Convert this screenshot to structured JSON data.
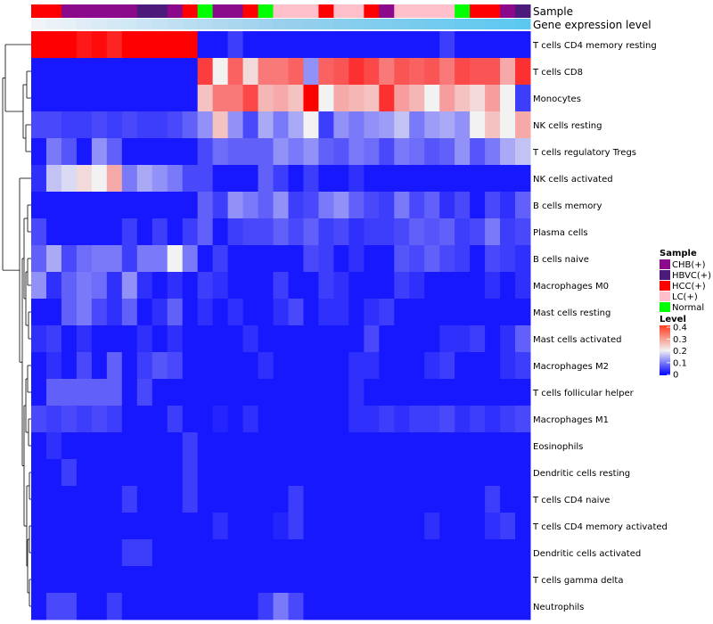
{
  "chart_data": {
    "type": "heatmap",
    "title": "",
    "annotation_labels": [
      "Sample",
      "Gene expression level"
    ],
    "column_count": 33,
    "sample_groups": [
      "HCC(+)",
      "HCC(+)",
      "CHB(+)",
      "CHB(+)",
      "CHB(+)",
      "CHB(+)",
      "CHB(+)",
      "HBVC(+)",
      "HBVC(+)",
      "CHB(+)",
      "HCC(+)",
      "Normal",
      "CHB(+)",
      "CHB(+)",
      "HCC(+)",
      "Normal",
      "LC(+)",
      "LC(+)",
      "LC(+)",
      "HCC(+)",
      "LC(+)",
      "LC(+)",
      "HCC(+)",
      "CHB(+)",
      "LC(+)",
      "LC(+)",
      "LC(+)",
      "LC(+)",
      "Normal",
      "HCC(+)",
      "HCC(+)",
      "CHB(+)",
      "HBVC(+)"
    ],
    "expression_gradient": [
      "#f0f4f8",
      "#9ad0ec",
      "#5bc8f0"
    ],
    "rows": [
      {
        "name": "T cells CD4 memory resting",
        "values": [
          0.43,
          0.42,
          0.41,
          0.38,
          0.39,
          0.37,
          0.41,
          0.42,
          0.43,
          0.42,
          0.41,
          0.02,
          0.02,
          0.05,
          0.02,
          0.02,
          0.02,
          0.02,
          0.02,
          0.02,
          0.02,
          0.02,
          0.02,
          0.02,
          0.02,
          0.02,
          0.02,
          0.05,
          0.02,
          0.02,
          0.02,
          0.02,
          0.02
        ]
      },
      {
        "name": "T cells CD8",
        "values": [
          0.02,
          0.02,
          0.02,
          0.02,
          0.02,
          0.02,
          0.02,
          0.02,
          0.02,
          0.02,
          0.02,
          0.35,
          0.2,
          0.32,
          0.22,
          0.3,
          0.3,
          0.32,
          0.12,
          0.32,
          0.33,
          0.36,
          0.34,
          0.3,
          0.33,
          0.32,
          0.33,
          0.3,
          0.34,
          0.33,
          0.33,
          0.26,
          0.36
        ]
      },
      {
        "name": "Monocytes",
        "values": [
          0.02,
          0.02,
          0.02,
          0.02,
          0.02,
          0.02,
          0.02,
          0.02,
          0.02,
          0.02,
          0.02,
          0.24,
          0.3,
          0.3,
          0.34,
          0.25,
          0.26,
          0.24,
          0.42,
          0.2,
          0.26,
          0.25,
          0.24,
          0.36,
          0.27,
          0.25,
          0.2,
          0.27,
          0.24,
          0.22,
          0.27,
          0.2,
          0.05
        ]
      },
      {
        "name": "NK cells resting",
        "values": [
          0.06,
          0.06,
          0.05,
          0.05,
          0.06,
          0.05,
          0.06,
          0.05,
          0.05,
          0.06,
          0.08,
          0.12,
          0.24,
          0.12,
          0.06,
          0.14,
          0.1,
          0.14,
          0.2,
          0.05,
          0.12,
          0.1,
          0.12,
          0.13,
          0.16,
          0.1,
          0.13,
          0.14,
          0.12,
          0.2,
          0.24,
          0.2,
          0.26
        ]
      },
      {
        "name": "T cells regulatory  Tregs",
        "values": [
          0.02,
          0.1,
          0.07,
          0.02,
          0.12,
          0.08,
          0.02,
          0.02,
          0.02,
          0.02,
          0.02,
          0.06,
          0.09,
          0.08,
          0.08,
          0.08,
          0.12,
          0.1,
          0.12,
          0.08,
          0.07,
          0.1,
          0.09,
          0.06,
          0.1,
          0.09,
          0.07,
          0.08,
          0.12,
          0.07,
          0.1,
          0.14,
          0.16
        ]
      },
      {
        "name": "NK cells activated",
        "values": [
          0.04,
          0.16,
          0.18,
          0.22,
          0.2,
          0.26,
          0.1,
          0.14,
          0.12,
          0.1,
          0.06,
          0.06,
          0.02,
          0.02,
          0.02,
          0.08,
          0.05,
          0.02,
          0.05,
          0.02,
          0.02,
          0.04,
          0.02,
          0.02,
          0.02,
          0.02,
          0.02,
          0.02,
          0.02,
          0.02,
          0.02,
          0.02,
          0.02
        ]
      },
      {
        "name": "B cells memory",
        "values": [
          0.02,
          0.02,
          0.02,
          0.02,
          0.02,
          0.02,
          0.02,
          0.02,
          0.02,
          0.02,
          0.02,
          0.08,
          0.05,
          0.12,
          0.1,
          0.08,
          0.12,
          0.05,
          0.06,
          0.1,
          0.12,
          0.08,
          0.06,
          0.05,
          0.1,
          0.06,
          0.08,
          0.04,
          0.06,
          0.02,
          0.06,
          0.04,
          0.08
        ]
      },
      {
        "name": "Plasma cells",
        "values": [
          0.06,
          0.02,
          0.02,
          0.02,
          0.02,
          0.02,
          0.05,
          0.02,
          0.05,
          0.02,
          0.05,
          0.08,
          0.02,
          0.05,
          0.06,
          0.06,
          0.08,
          0.06,
          0.08,
          0.05,
          0.06,
          0.04,
          0.05,
          0.05,
          0.06,
          0.08,
          0.07,
          0.08,
          0.05,
          0.06,
          0.1,
          0.05,
          0.06
        ]
      },
      {
        "name": "B cells naive",
        "values": [
          0.08,
          0.14,
          0.06,
          0.09,
          0.1,
          0.1,
          0.05,
          0.1,
          0.1,
          0.2,
          0.1,
          0.02,
          0.05,
          0.02,
          0.02,
          0.02,
          0.02,
          0.02,
          0.06,
          0.05,
          0.02,
          0.04,
          0.02,
          0.02,
          0.07,
          0.06,
          0.08,
          0.06,
          0.05,
          0.02,
          0.06,
          0.05,
          0.04
        ]
      },
      {
        "name": "Macrophages M0",
        "values": [
          0.12,
          0.04,
          0.08,
          0.1,
          0.09,
          0.04,
          0.12,
          0.04,
          0.02,
          0.04,
          0.02,
          0.05,
          0.04,
          0.02,
          0.02,
          0.02,
          0.05,
          0.02,
          0.02,
          0.05,
          0.04,
          0.02,
          0.02,
          0.02,
          0.05,
          0.04,
          0.02,
          0.02,
          0.02,
          0.02,
          0.04,
          0.02,
          0.04
        ]
      },
      {
        "name": "Mast cells resting",
        "values": [
          0.02,
          0.02,
          0.08,
          0.1,
          0.06,
          0.04,
          0.08,
          0.02,
          0.04,
          0.08,
          0.02,
          0.04,
          0.02,
          0.04,
          0.02,
          0.02,
          0.04,
          0.06,
          0.02,
          0.04,
          0.04,
          0.02,
          0.04,
          0.05,
          0.02,
          0.02,
          0.02,
          0.02,
          0.02,
          0.02,
          0.02,
          0.02,
          0.02
        ]
      },
      {
        "name": "Mast cells activated",
        "values": [
          0.04,
          0.05,
          0.02,
          0.04,
          0.02,
          0.02,
          0.02,
          0.04,
          0.02,
          0.04,
          0.02,
          0.02,
          0.02,
          0.02,
          0.04,
          0.02,
          0.02,
          0.02,
          0.02,
          0.02,
          0.02,
          0.02,
          0.06,
          0.02,
          0.02,
          0.02,
          0.02,
          0.04,
          0.04,
          0.05,
          0.02,
          0.04,
          0.08
        ]
      },
      {
        "name": "Macrophages M2",
        "values": [
          0.02,
          0.04,
          0.02,
          0.06,
          0.02,
          0.08,
          0.02,
          0.05,
          0.07,
          0.06,
          0.02,
          0.02,
          0.02,
          0.02,
          0.02,
          0.04,
          0.02,
          0.02,
          0.02,
          0.02,
          0.02,
          0.04,
          0.04,
          0.02,
          0.02,
          0.02,
          0.04,
          0.05,
          0.02,
          0.02,
          0.02,
          0.04,
          0.05
        ]
      },
      {
        "name": "T cells follicular helper",
        "values": [
          0.02,
          0.08,
          0.08,
          0.08,
          0.08,
          0.08,
          0.02,
          0.06,
          0.02,
          0.02,
          0.02,
          0.02,
          0.02,
          0.02,
          0.02,
          0.02,
          0.02,
          0.02,
          0.02,
          0.02,
          0.02,
          0.04,
          0.02,
          0.02,
          0.02,
          0.02,
          0.02,
          0.02,
          0.02,
          0.02,
          0.02,
          0.02,
          0.02
        ]
      },
      {
        "name": "Macrophages M1",
        "values": [
          0.06,
          0.05,
          0.06,
          0.05,
          0.06,
          0.05,
          0.02,
          0.02,
          0.02,
          0.05,
          0.02,
          0.02,
          0.03,
          0.02,
          0.04,
          0.02,
          0.02,
          0.02,
          0.02,
          0.02,
          0.02,
          0.04,
          0.04,
          0.05,
          0.04,
          0.05,
          0.05,
          0.06,
          0.04,
          0.05,
          0.04,
          0.05,
          0.06
        ]
      },
      {
        "name": "Eosinophils",
        "values": [
          0.02,
          0.04,
          0.02,
          0.02,
          0.02,
          0.02,
          0.02,
          0.02,
          0.02,
          0.02,
          0.05,
          0.02,
          0.02,
          0.02,
          0.02,
          0.02,
          0.02,
          0.02,
          0.02,
          0.02,
          0.02,
          0.02,
          0.02,
          0.02,
          0.02,
          0.02,
          0.02,
          0.02,
          0.02,
          0.02,
          0.02,
          0.02,
          0.02
        ]
      },
      {
        "name": "Dendritic cells resting",
        "values": [
          0.02,
          0.02,
          0.05,
          0.02,
          0.02,
          0.02,
          0.02,
          0.02,
          0.02,
          0.02,
          0.05,
          0.02,
          0.02,
          0.02,
          0.02,
          0.02,
          0.02,
          0.02,
          0.02,
          0.02,
          0.02,
          0.02,
          0.02,
          0.02,
          0.02,
          0.02,
          0.02,
          0.02,
          0.02,
          0.02,
          0.02,
          0.02,
          0.02
        ]
      },
      {
        "name": "T cells CD4 naive",
        "values": [
          0.02,
          0.02,
          0.02,
          0.02,
          0.02,
          0.02,
          0.05,
          0.02,
          0.02,
          0.02,
          0.05,
          0.02,
          0.02,
          0.02,
          0.02,
          0.02,
          0.02,
          0.05,
          0.02,
          0.02,
          0.02,
          0.02,
          0.02,
          0.02,
          0.02,
          0.02,
          0.02,
          0.02,
          0.02,
          0.02,
          0.05,
          0.02,
          0.02
        ]
      },
      {
        "name": "T cells CD4 memory activated",
        "values": [
          0.02,
          0.02,
          0.02,
          0.02,
          0.02,
          0.02,
          0.02,
          0.02,
          0.02,
          0.02,
          0.02,
          0.02,
          0.04,
          0.02,
          0.02,
          0.02,
          0.03,
          0.05,
          0.02,
          0.02,
          0.02,
          0.02,
          0.02,
          0.02,
          0.02,
          0.02,
          0.04,
          0.02,
          0.02,
          0.02,
          0.04,
          0.05,
          0.02
        ]
      },
      {
        "name": "Dendritic cells activated",
        "values": [
          0.02,
          0.02,
          0.02,
          0.02,
          0.02,
          0.02,
          0.05,
          0.05,
          0.02,
          0.02,
          0.02,
          0.02,
          0.02,
          0.02,
          0.02,
          0.02,
          0.02,
          0.02,
          0.02,
          0.02,
          0.02,
          0.02,
          0.02,
          0.02,
          0.02,
          0.02,
          0.02,
          0.02,
          0.02,
          0.02,
          0.02,
          0.02,
          0.02
        ]
      },
      {
        "name": "T cells gamma delta",
        "values": [
          0.02,
          0.02,
          0.02,
          0.02,
          0.02,
          0.02,
          0.02,
          0.02,
          0.02,
          0.02,
          0.02,
          0.02,
          0.02,
          0.02,
          0.02,
          0.02,
          0.02,
          0.02,
          0.02,
          0.02,
          0.02,
          0.02,
          0.02,
          0.02,
          0.02,
          0.02,
          0.02,
          0.02,
          0.02,
          0.02,
          0.02,
          0.02,
          0.02
        ]
      },
      {
        "name": "Neutrophils",
        "values": [
          0.02,
          0.06,
          0.06,
          0.02,
          0.02,
          0.05,
          0.02,
          0.02,
          0.02,
          0.02,
          0.02,
          0.02,
          0.02,
          0.02,
          0.02,
          0.05,
          0.1,
          0.06,
          0.02,
          0.02,
          0.02,
          0.02,
          0.02,
          0.02,
          0.02,
          0.02,
          0.02,
          0.02,
          0.02,
          0.02,
          0.02,
          0.02,
          0.02
        ]
      }
    ],
    "color_scale": {
      "min": 0,
      "max": 0.4,
      "low": "#0000ff",
      "mid": "#f2f2f2",
      "high": "#ff0000",
      "mid_value": 0.2
    },
    "legends": {
      "sample": {
        "title": "Sample",
        "entries": [
          {
            "label": "CHB(+)",
            "color": "#8b0a8b"
          },
          {
            "label": "HBVC(+)",
            "color": "#4b1a7a"
          },
          {
            "label": "HCC(+)",
            "color": "#ff0000"
          },
          {
            "label": "LC(+)",
            "color": "#ffc0cb"
          },
          {
            "label": "Normal",
            "color": "#00ff00"
          }
        ]
      },
      "level": {
        "title": "Level",
        "ticks": [
          "0.4",
          "0.3",
          "0.2",
          "0.1",
          "0"
        ]
      }
    }
  }
}
